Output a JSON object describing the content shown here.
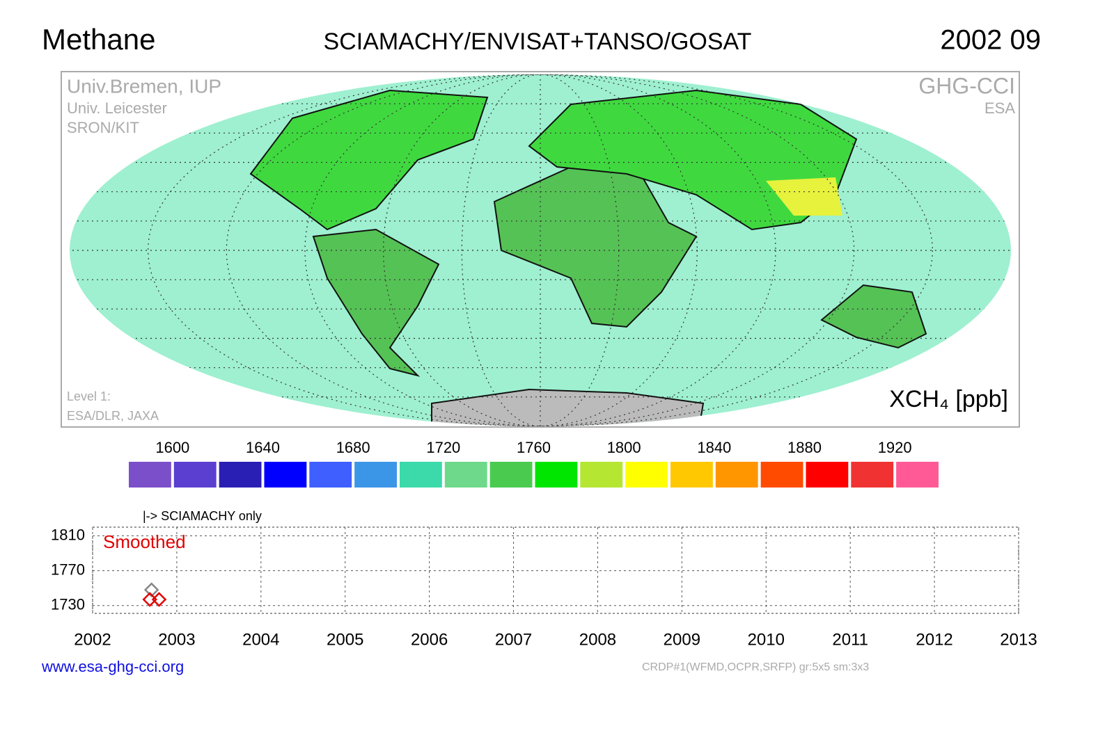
{
  "header": {
    "title": "Methane",
    "subtitle": "SCIAMACHY/ENVISAT+TANSO/GOSAT",
    "date": "2002 09"
  },
  "map": {
    "credits_left": [
      "Univ.Bremen, IUP",
      "Univ. Leicester",
      "SRON/KIT"
    ],
    "credits_right": [
      "GHG-CCI",
      "ESA"
    ],
    "level": [
      "Level 1:",
      "ESA/DLR, JAXA"
    ],
    "unit": "XCH₄ [ppb]"
  },
  "colorbar": {
    "range": [
      1580,
      1940
    ],
    "ticks": [
      1600,
      1640,
      1680,
      1720,
      1760,
      1800,
      1840,
      1880,
      1920
    ],
    "colors": [
      "#7b4fc9",
      "#5a3fd0",
      "#2a1fb5",
      "#0000ff",
      "#3f5fff",
      "#3c96e8",
      "#3cd9aa",
      "#6ed98a",
      "#4acb50",
      "#00e600",
      "#b4e632",
      "#ffff00",
      "#ffc800",
      "#ff9600",
      "#ff4b00",
      "#ff0000",
      "#f03232",
      "#ff5a96"
    ]
  },
  "chart_data": {
    "type": "scatter",
    "annotation": "|-> SCIAMACHY only",
    "label": "Smoothed",
    "xlim": [
      2002,
      2013
    ],
    "xticks": [
      2002,
      2003,
      2004,
      2005,
      2006,
      2007,
      2008,
      2009,
      2010,
      2011,
      2012,
      2013
    ],
    "ylim": [
      1721,
      1820
    ],
    "yticks": [
      1730,
      1770,
      1810
    ],
    "grid": true,
    "series": [
      {
        "color": "#888888",
        "x": [
          2002.7
        ],
        "values": [
          1748
        ]
      },
      {
        "color": "#e00000",
        "x": [
          2002.68,
          2002.79
        ],
        "values": [
          1737,
          1737
        ]
      }
    ]
  },
  "footer": {
    "url": "www.esa-ghg-cci.org",
    "note": "CRDP#1(WFMD,OCPR,SRFP) gr:5x5 sm:3x3"
  }
}
